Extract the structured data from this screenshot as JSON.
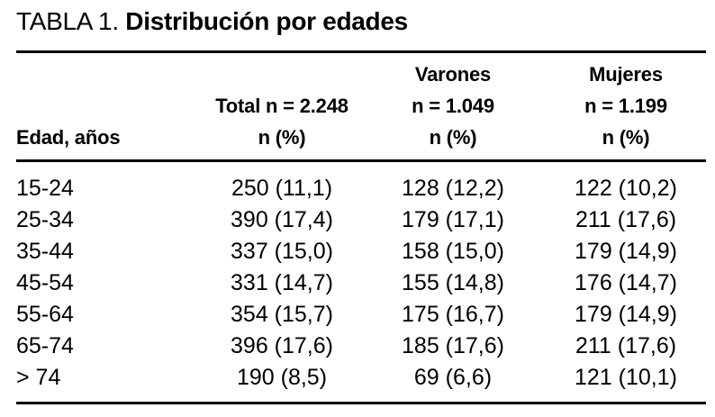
{
  "title": {
    "prefix": "TABLA 1.",
    "main": "Distribución por edades"
  },
  "table": {
    "age_header": "Edad, años",
    "group_headers": [
      {
        "lines": [
          "Total n = 2.248",
          "n (%)"
        ]
      },
      {
        "lines": [
          "Varones",
          "n = 1.049",
          "n (%)"
        ]
      },
      {
        "lines": [
          "Mujeres",
          "n = 1.199",
          "n (%)"
        ]
      }
    ],
    "rows": [
      {
        "edad": "15-24",
        "total": "250 (11,1)",
        "varones": "128 (12,2)",
        "mujeres": "122 (10,2)"
      },
      {
        "edad": "25-34",
        "total": "390 (17,4)",
        "varones": "179 (17,1)",
        "mujeres": "211 (17,6)"
      },
      {
        "edad": "35-44",
        "total": "337 (15,0)",
        "varones": "158 (15,0)",
        "mujeres": "179 (14,9)"
      },
      {
        "edad": "45-54",
        "total": "331 (14,7)",
        "varones": "155 (14,8)",
        "mujeres": "176 (14,7)"
      },
      {
        "edad": "55-64",
        "total": "354 (15,7)",
        "varones": "175 (16,7)",
        "mujeres": "179 (14,9)"
      },
      {
        "edad": "65-74",
        "total": "396 (17,6)",
        "varones": "185 (17,6)",
        "mujeres": "211 (17,6)"
      },
      {
        "edad": "> 74",
        "total": "190 (8,5)",
        "varones": "69 (6,6)",
        "mujeres": "121 (10,1)"
      }
    ]
  },
  "colors": {
    "background": "#ffffff",
    "text": "#000000",
    "rule": "#000000"
  }
}
